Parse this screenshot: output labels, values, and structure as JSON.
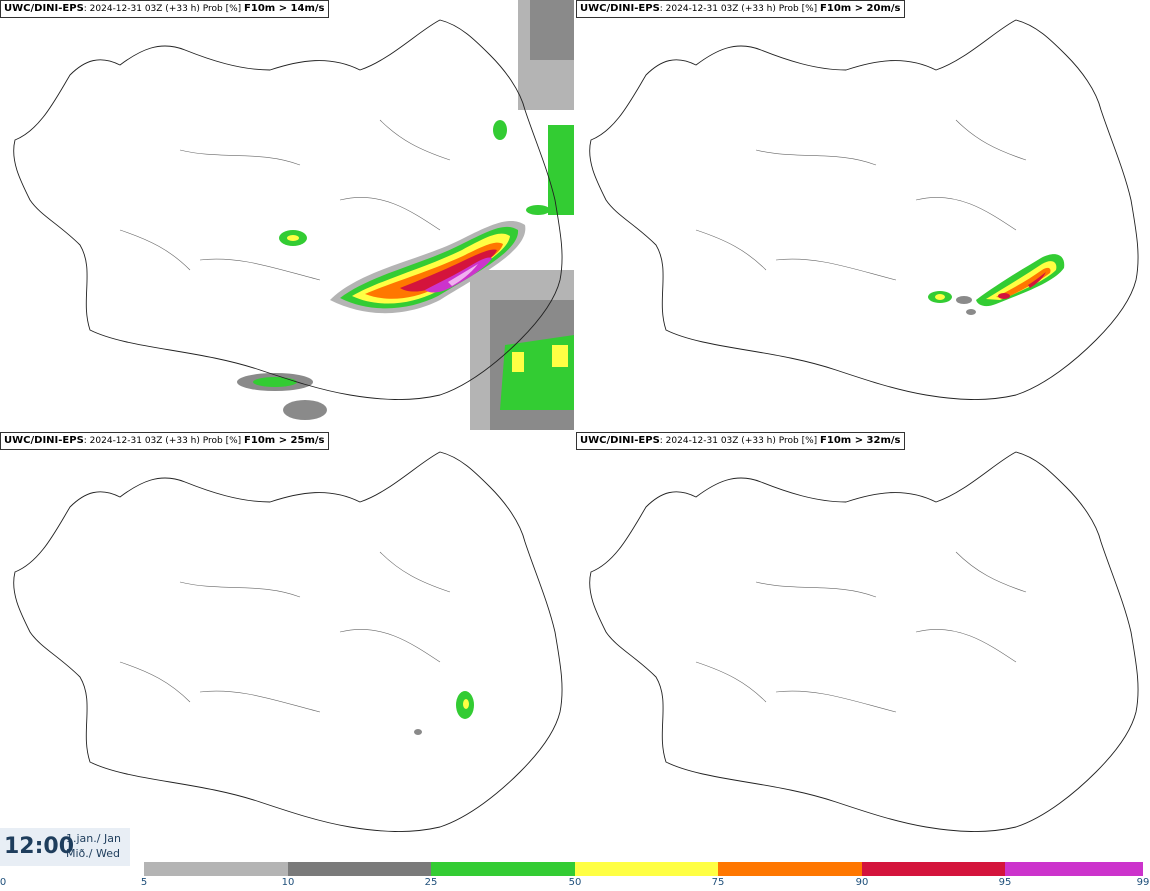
{
  "panels": [
    {
      "model": "UWC/DINI-EPS",
      "meta": ": 2024-12-31 03Z (+33 h) Prob [%]",
      "threshold": "F10m > 14m/s"
    },
    {
      "model": "UWC/DINI-EPS",
      "meta": ": 2024-12-31 03Z (+33 h) Prob [%]",
      "threshold": "F10m > 20m/s"
    },
    {
      "model": "UWC/DINI-EPS",
      "meta": ": 2024-12-31 03Z (+33 h) Prob [%]",
      "threshold": "F10m > 25m/s"
    },
    {
      "model": "UWC/DINI-EPS",
      "meta": ": 2024-12-31 03Z (+33 h) Prob [%]",
      "threshold": "F10m > 32m/s"
    }
  ],
  "valid_time": {
    "time": "12:00",
    "date": "1.jan./ Jan",
    "day": "Mið./ Wed"
  },
  "colorbar": {
    "ticks": [
      "0",
      "5",
      "10",
      "25",
      "50",
      "75",
      "90",
      "95",
      "99"
    ],
    "colors": [
      "#ffffff",
      "#b4b4b4",
      "#7a7a7a",
      "#33cc33",
      "#ffff44",
      "#ff7700",
      "#d4143c",
      "#cc33cc",
      "#f0b0f0"
    ]
  }
}
